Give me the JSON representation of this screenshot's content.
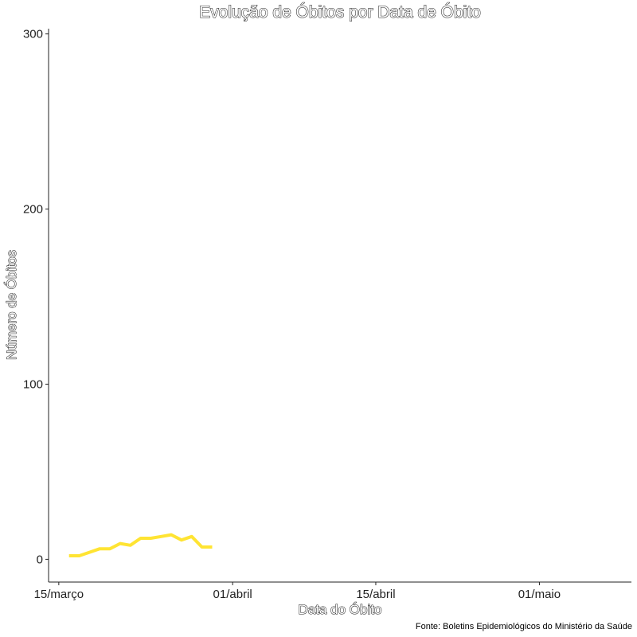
{
  "chart_data": {
    "type": "line",
    "title": "Evolução de Óbitos por Data de Óbito",
    "xlabel": "Data do Óbito",
    "ylabel": "Número de Óbitos",
    "caption": "Fonte: Boletins Epidemiológicos do Ministério da Saúde",
    "x_ticks": [
      {
        "label": "15/março",
        "value": "2020-03-15"
      },
      {
        "label": "01/abril",
        "value": "2020-04-01"
      },
      {
        "label": "15/abril",
        "value": "2020-04-15"
      },
      {
        "label": "01/maio",
        "value": "2020-05-01"
      }
    ],
    "y_ticks": [
      0,
      100,
      200,
      300
    ],
    "xlim": [
      "2020-03-14",
      "2020-05-10"
    ],
    "ylim": [
      -13,
      303
    ],
    "grid": false,
    "series": [
      {
        "color": "#FFE433",
        "x": [
          "2020-03-16",
          "2020-03-17",
          "2020-03-18",
          "2020-03-19",
          "2020-03-20",
          "2020-03-21",
          "2020-03-22",
          "2020-03-23",
          "2020-03-24",
          "2020-03-25",
          "2020-03-26",
          "2020-03-27",
          "2020-03-28",
          "2020-03-29",
          "2020-03-30"
        ],
        "y": [
          2,
          2,
          4,
          6,
          6,
          9,
          8,
          12,
          12,
          13,
          14,
          11,
          13,
          7,
          7
        ]
      }
    ]
  }
}
